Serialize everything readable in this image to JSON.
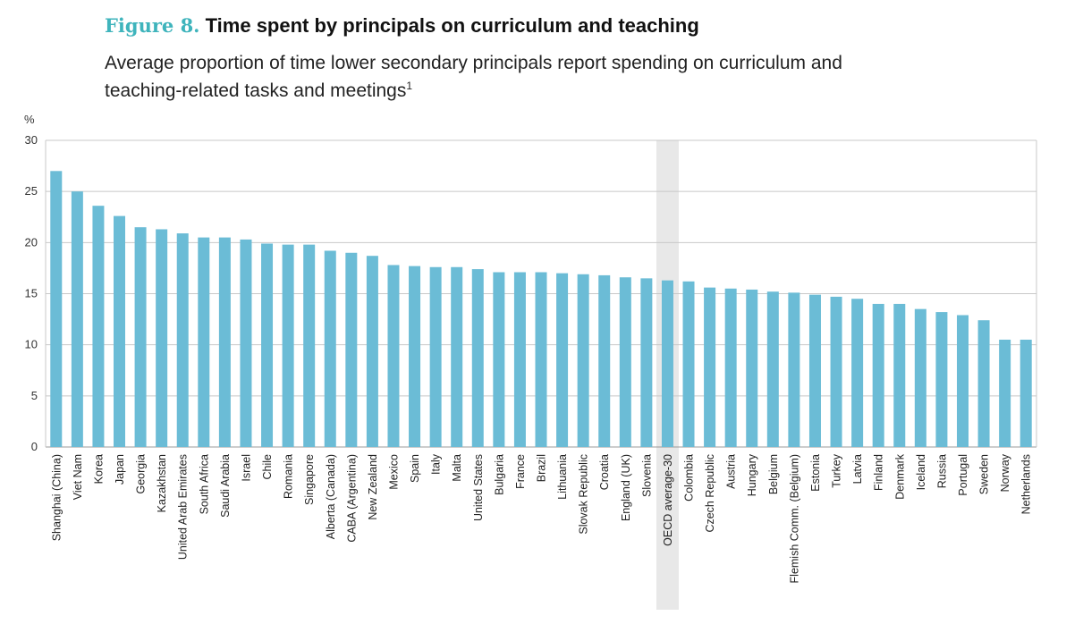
{
  "figure_label": "Figure 8.",
  "figure_title": "Time spent by principals on curriculum and teaching",
  "subtitle_text": "Average proportion of time lower secondary principals report spending on curriculum and teaching-related tasks and meetings",
  "subtitle_footnote": "1",
  "colors": {
    "bar": "#6bbcd6",
    "highlight": "#e8e8e8",
    "grid": "#c8c8c8",
    "accent": "#3fb4bc"
  },
  "chart_data": {
    "type": "bar",
    "title": "Time spent by principals on curriculum and teaching",
    "xlabel": "",
    "ylabel": "%",
    "ylim": [
      0,
      30
    ],
    "yticks": [
      0,
      5,
      10,
      15,
      20,
      25,
      30
    ],
    "grid": true,
    "highlight_category": "OECD average-30",
    "categories": [
      "Shanghai (China)",
      "Viet Nam",
      "Korea",
      "Japan",
      "Georgia",
      "Kazakhstan",
      "United Arab Emirates",
      "South Africa",
      "Saudi Arabia",
      "Israel",
      "Chile",
      "Romania",
      "Singapore",
      "Alberta (Canada)",
      "CABA (Argentina)",
      "New Zealand",
      "Mexico",
      "Spain",
      "Italy",
      "Malta",
      "United States",
      "Bulgaria",
      "France",
      "Brazil",
      "Lithuania",
      "Slovak Republic",
      "Croatia",
      "England (UK)",
      "Slovenia",
      "OECD average-30",
      "Colombia",
      "Czech Republic",
      "Austria",
      "Hungary",
      "Belgium",
      "Flemish Comm. (Belgium)",
      "Estonia",
      "Turkey",
      "Latvia",
      "Finland",
      "Denmark",
      "Iceland",
      "Russia",
      "Portugal",
      "Sweden",
      "Norway",
      "Netherlands"
    ],
    "values": [
      27.0,
      25.0,
      23.6,
      22.6,
      21.5,
      21.3,
      20.9,
      20.5,
      20.5,
      20.3,
      19.9,
      19.8,
      19.8,
      19.2,
      19.0,
      18.7,
      17.8,
      17.7,
      17.6,
      17.6,
      17.4,
      17.1,
      17.1,
      17.1,
      17.0,
      16.9,
      16.8,
      16.6,
      16.5,
      16.3,
      16.2,
      15.6,
      15.5,
      15.4,
      15.2,
      15.1,
      14.9,
      14.7,
      14.5,
      14.0,
      14.0,
      13.5,
      13.2,
      12.9,
      12.4,
      10.5,
      10.5
    ]
  }
}
